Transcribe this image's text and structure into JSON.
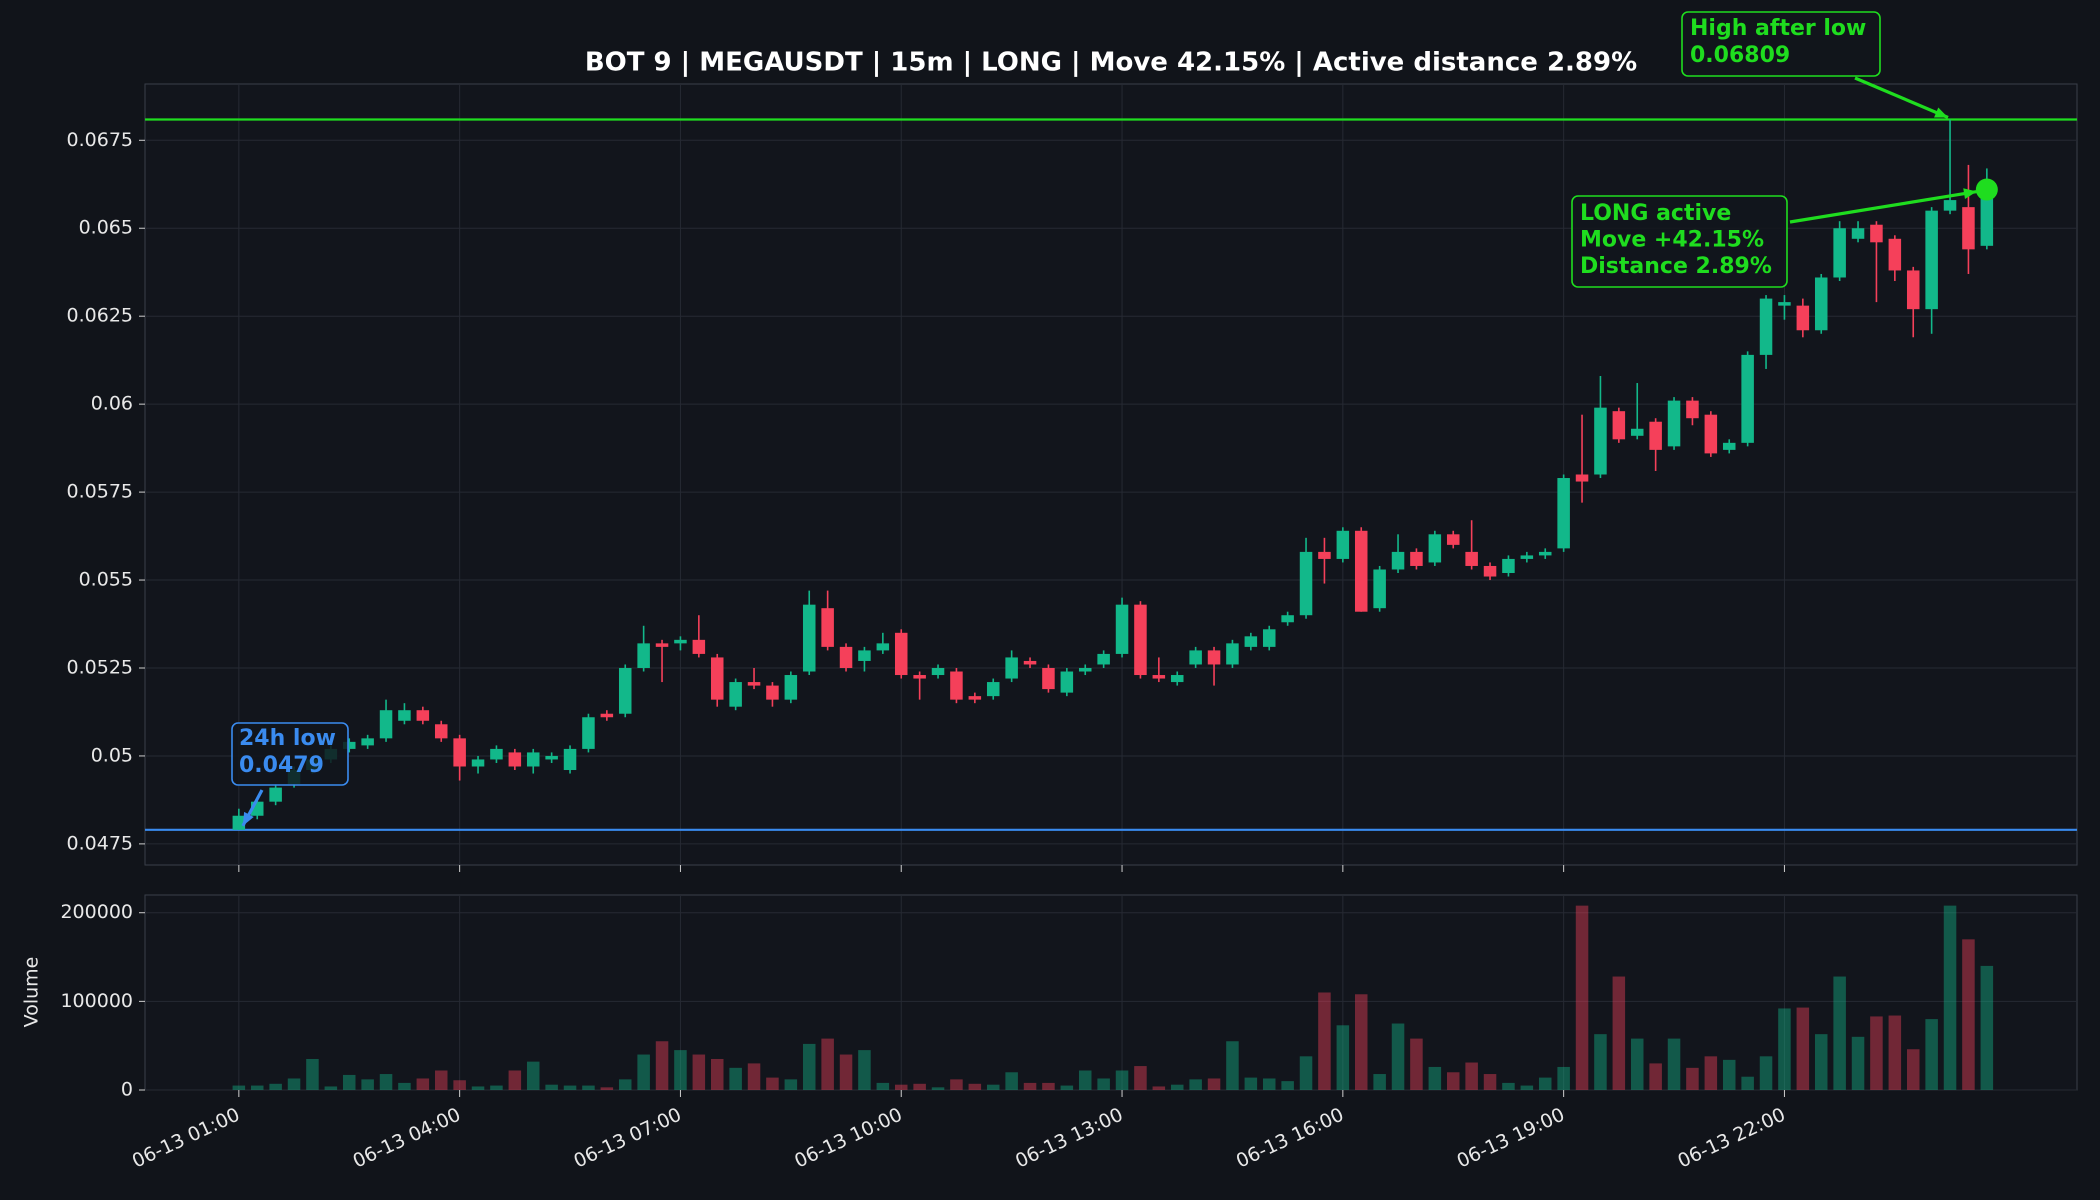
{
  "chart_data": {
    "type": "candlestick",
    "title": "BOT 9 | MEGAUSDT | 15m | LONG | Move 42.15% | Active distance 2.89%",
    "categories": [
      "06-13 01:00",
      null,
      null,
      null,
      null,
      null,
      null,
      null,
      null,
      null,
      null,
      null,
      "06-13 04:00",
      null,
      null,
      null,
      null,
      null,
      null,
      null,
      null,
      null,
      null,
      null,
      "06-13 07:00",
      null,
      null,
      null,
      null,
      null,
      null,
      null,
      null,
      null,
      null,
      null,
      "06-13 10:00",
      null,
      null,
      null,
      null,
      null,
      null,
      null,
      null,
      null,
      null,
      null,
      "06-13 13:00",
      null,
      null,
      null,
      null,
      null,
      null,
      null,
      null,
      null,
      null,
      null,
      "06-13 16:00",
      null,
      null,
      null,
      null,
      null,
      null,
      null,
      null,
      null,
      null,
      null,
      "06-13 19:00",
      null,
      null,
      null,
      null,
      null,
      null,
      null,
      null,
      null,
      null,
      null,
      "06-13 22:00",
      null,
      null,
      null,
      null,
      null,
      null,
      null,
      null,
      null,
      null,
      null
    ],
    "open": [
      0.0479,
      0.0483,
      0.0487,
      0.0492,
      0.0496,
      0.0499,
      0.0502,
      0.0503,
      0.0505,
      0.051,
      0.0513,
      0.0509,
      0.0505,
      0.0497,
      0.0499,
      0.0501,
      0.0497,
      0.0499,
      0.0496,
      0.0502,
      0.0512,
      0.0512,
      0.0525,
      0.0532,
      0.0532,
      0.0533,
      0.0528,
      0.0514,
      0.0521,
      0.052,
      0.0516,
      0.0524,
      0.0542,
      0.0531,
      0.0527,
      0.053,
      0.0535,
      0.0523,
      0.0523,
      0.0524,
      0.0517,
      0.0517,
      0.0522,
      0.0527,
      0.0525,
      0.0518,
      0.0524,
      0.0526,
      0.0529,
      0.0543,
      0.0523,
      0.0521,
      0.0526,
      0.053,
      0.0526,
      0.0531,
      0.0531,
      0.0538,
      0.054,
      0.0558,
      0.0556,
      0.0564,
      0.0542,
      0.0553,
      0.0558,
      0.0555,
      0.0563,
      0.0558,
      0.0554,
      0.0552,
      0.0556,
      0.0557,
      0.0559,
      0.058,
      0.058,
      0.0598,
      0.0591,
      0.0595,
      0.0588,
      0.0601,
      0.0597,
      0.0587,
      0.0589,
      0.0614,
      0.0628,
      0.0628,
      0.0621,
      0.0636,
      0.0647,
      0.0651,
      0.0647,
      0.0638,
      0.0627,
      0.0655,
      0.0656,
      0.0645
    ],
    "high": [
      0.0485,
      0.0488,
      0.0492,
      0.0497,
      0.05,
      0.0503,
      0.0505,
      0.0506,
      0.0516,
      0.0515,
      0.0514,
      0.051,
      0.0506,
      0.05,
      0.0503,
      0.0502,
      0.0502,
      0.0501,
      0.0503,
      0.0512,
      0.0513,
      0.0526,
      0.0537,
      0.0533,
      0.0534,
      0.054,
      0.0529,
      0.0522,
      0.0525,
      0.0521,
      0.0524,
      0.0547,
      0.0547,
      0.0532,
      0.0531,
      0.0535,
      0.0536,
      0.0524,
      0.0526,
      0.0525,
      0.0518,
      0.0522,
      0.053,
      0.0528,
      0.0526,
      0.0525,
      0.0526,
      0.053,
      0.0545,
      0.0544,
      0.0528,
      0.0524,
      0.0531,
      0.0531,
      0.0533,
      0.0535,
      0.0537,
      0.0541,
      0.0562,
      0.0562,
      0.0565,
      0.0565,
      0.0554,
      0.0563,
      0.0559,
      0.0564,
      0.0564,
      0.0567,
      0.0555,
      0.0557,
      0.0558,
      0.0559,
      0.058,
      0.0597,
      0.0608,
      0.0599,
      0.0606,
      0.0596,
      0.0602,
      0.0602,
      0.0598,
      0.059,
      0.0615,
      0.0631,
      0.0631,
      0.063,
      0.0637,
      0.0652,
      0.0652,
      0.0652,
      0.0648,
      0.0639,
      0.0656,
      0.06809,
      0.0668,
      0.0667
    ],
    "low": [
      0.0479,
      0.0482,
      0.0486,
      0.0491,
      0.0495,
      0.0498,
      0.0501,
      0.0502,
      0.0504,
      0.0509,
      0.0509,
      0.0504,
      0.0493,
      0.0495,
      0.0498,
      0.0496,
      0.0495,
      0.0498,
      0.0495,
      0.0501,
      0.051,
      0.0511,
      0.0524,
      0.0521,
      0.053,
      0.0528,
      0.0514,
      0.0513,
      0.0519,
      0.0514,
      0.0515,
      0.0523,
      0.053,
      0.0524,
      0.0524,
      0.0529,
      0.0522,
      0.0516,
      0.0522,
      0.0515,
      0.0515,
      0.0516,
      0.0521,
      0.0525,
      0.0518,
      0.0517,
      0.0523,
      0.0525,
      0.0528,
      0.0522,
      0.0521,
      0.052,
      0.0525,
      0.052,
      0.0525,
      0.053,
      0.053,
      0.0537,
      0.0539,
      0.0549,
      0.0555,
      0.0541,
      0.0541,
      0.0552,
      0.0553,
      0.0554,
      0.0559,
      0.0553,
      0.055,
      0.0551,
      0.0555,
      0.0556,
      0.0558,
      0.0572,
      0.0579,
      0.0589,
      0.059,
      0.0581,
      0.0587,
      0.0594,
      0.0585,
      0.0586,
      0.0588,
      0.061,
      0.0624,
      0.0619,
      0.062,
      0.0635,
      0.0646,
      0.0629,
      0.0635,
      0.0619,
      0.062,
      0.0654,
      0.0637,
      0.0644
    ],
    "close": [
      0.0483,
      0.0487,
      0.0491,
      0.0496,
      0.0499,
      0.0502,
      0.0504,
      0.0505,
      0.0513,
      0.0513,
      0.051,
      0.0505,
      0.0497,
      0.0499,
      0.0502,
      0.0497,
      0.0501,
      0.05,
      0.0502,
      0.0511,
      0.0511,
      0.0525,
      0.0532,
      0.0531,
      0.0533,
      0.0529,
      0.0516,
      0.0521,
      0.052,
      0.0516,
      0.0523,
      0.0543,
      0.0531,
      0.0525,
      0.053,
      0.0532,
      0.0523,
      0.0522,
      0.0525,
      0.0516,
      0.0516,
      0.0521,
      0.0528,
      0.0526,
      0.0519,
      0.0524,
      0.0525,
      0.0529,
      0.0543,
      0.0523,
      0.0522,
      0.0523,
      0.053,
      0.0526,
      0.0532,
      0.0534,
      0.0536,
      0.054,
      0.0558,
      0.0556,
      0.0564,
      0.0541,
      0.0553,
      0.0558,
      0.0554,
      0.0563,
      0.056,
      0.0554,
      0.0551,
      0.0556,
      0.0557,
      0.0558,
      0.0579,
      0.0578,
      0.0599,
      0.059,
      0.0593,
      0.0587,
      0.0601,
      0.0596,
      0.0586,
      0.0589,
      0.0614,
      0.063,
      0.0629,
      0.0621,
      0.0636,
      0.065,
      0.065,
      0.0646,
      0.0638,
      0.0627,
      0.0655,
      0.0658,
      0.0644,
      0.066
    ],
    "up_color": "#12b88a",
    "down_color": "#f5405a",
    "ylim": [
      0.0469,
      0.0691
    ],
    "yticks": [
      0.0475,
      0.05,
      0.0525,
      0.055,
      0.0575,
      0.06,
      0.0625,
      0.065,
      0.0675
    ],
    "grid": true,
    "levels": [
      {
        "name": "24h low",
        "value": 0.0479,
        "color": "#3a8bef"
      },
      {
        "name": "High after low",
        "value": 0.06809,
        "color": "#1fdd1f"
      }
    ],
    "status": {
      "lines": [
        "LONG active",
        "Move +42.15%",
        "Distance 2.89%"
      ],
      "value": 0.0661,
      "color": "#1fdd1f"
    },
    "volume": {
      "ylabel": "Volume",
      "values": [
        5000,
        5000,
        7000,
        13000,
        35000,
        4000,
        17000,
        12000,
        18000,
        8000,
        13000,
        22000,
        11000,
        4000,
        5000,
        22000,
        32000,
        6000,
        5000,
        5000,
        3000,
        12000,
        40000,
        55000,
        45000,
        40000,
        35000,
        25000,
        30000,
        14000,
        12000,
        52000,
        58000,
        40000,
        45000,
        8000,
        6000,
        7000,
        3000,
        12000,
        7000,
        6000,
        20000,
        8000,
        8000,
        5000,
        22000,
        13000,
        22000,
        27000,
        4000,
        6000,
        12000,
        13000,
        55000,
        14000,
        13000,
        10000,
        38000,
        110000,
        73000,
        108000,
        18000,
        75000,
        58000,
        26000,
        20000,
        31000,
        18000,
        8000,
        5000,
        14000,
        26000,
        208000,
        63000,
        128000,
        58000,
        30000,
        58000,
        25000,
        38000,
        34000,
        15000,
        38000,
        92000,
        93000,
        63000,
        128000,
        60000,
        83000,
        84000,
        46000,
        80000,
        208000,
        170000,
        140000
      ],
      "ylim": [
        0,
        220000
      ],
      "yticks": [
        0,
        100000,
        200000
      ]
    }
  }
}
